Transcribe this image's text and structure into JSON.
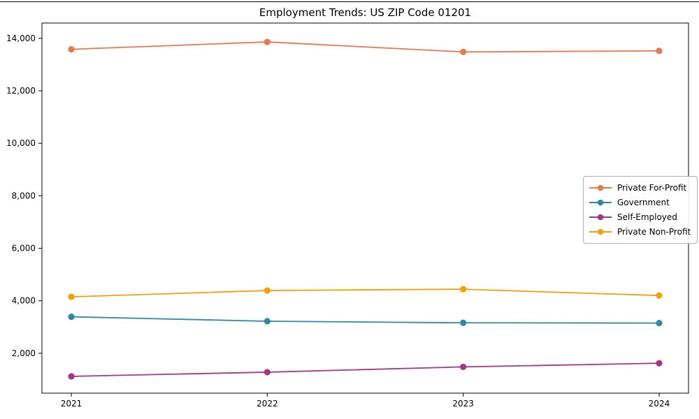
{
  "window": {
    "top_edge_color": "#000000"
  },
  "chart_data": {
    "type": "line",
    "title": "Employment Trends: US ZIP Code 01201",
    "xlabel": "",
    "ylabel": "",
    "x": [
      "2021",
      "2022",
      "2023",
      "2024"
    ],
    "series": [
      {
        "name": "Private For-Profit",
        "color": "#e8784e",
        "values": [
          13580,
          13860,
          13480,
          13520
        ]
      },
      {
        "name": "Government",
        "color": "#2e89a7",
        "values": [
          3390,
          3220,
          3160,
          3150
        ]
      },
      {
        "name": "Self-Employed",
        "color": "#a33686",
        "values": [
          1120,
          1280,
          1480,
          1620
        ]
      },
      {
        "name": "Private Non-Profit",
        "color": "#f59f07",
        "values": [
          4150,
          4390,
          4440,
          4200
        ]
      }
    ],
    "yticks": [
      2000,
      4000,
      6000,
      8000,
      10000,
      12000,
      14000
    ],
    "ytick_labels": [
      "2,000",
      "4,000",
      "6,000",
      "8,000",
      "10,000",
      "12,000",
      "14,000"
    ],
    "ylim": [
      480,
      14580
    ],
    "grid": false,
    "legend_position": "center right",
    "marker": "circle",
    "background": "#ffffff",
    "spine_color": "#000000"
  }
}
